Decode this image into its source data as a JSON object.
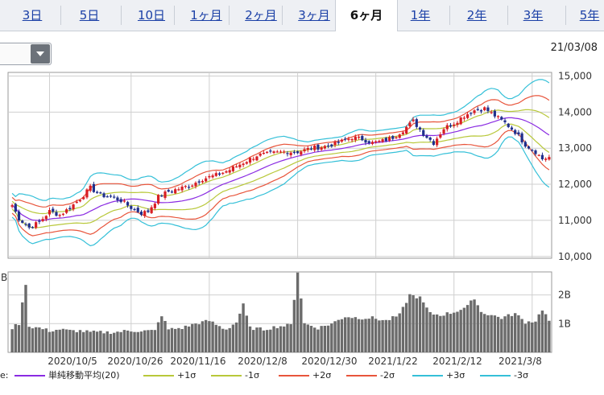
{
  "tabs": [
    {
      "label": "3日",
      "active": false
    },
    {
      "label": "5日",
      "active": false
    },
    {
      "label": "10日",
      "active": false
    },
    {
      "label": "1ヶ月",
      "active": false
    },
    {
      "label": "2ヶ月",
      "active": false
    },
    {
      "label": "3ヶ月",
      "active": false
    },
    {
      "label": "6ヶ月",
      "active": true
    },
    {
      "label": "1年",
      "active": false
    },
    {
      "label": "2年",
      "active": false
    },
    {
      "label": "3年",
      "active": false
    },
    {
      "label": "5年",
      "active": false
    }
  ],
  "date_label": "21/03/08",
  "legend_prefix": "e:",
  "legend": [
    {
      "label": "単純移動平均(20)",
      "color": "#8a2be2"
    },
    {
      "label": "+1σ",
      "color": "#b8c83a"
    },
    {
      "label": "-1σ",
      "color": "#b8c83a"
    },
    {
      "label": "+2σ",
      "color": "#e8553c"
    },
    {
      "label": "-2σ",
      "color": "#e8553c"
    },
    {
      "label": "+3σ",
      "color": "#35c0d8"
    },
    {
      "label": "-3σ",
      "color": "#35c0d8"
    }
  ],
  "colors": {
    "up": "#d81e24",
    "down": "#1f2f8c",
    "volume": "#6b6b6b"
  },
  "chart_data": {
    "type": "candlestick",
    "price_axis": {
      "ticks": [
        10000,
        11000,
        12000,
        13000,
        14000,
        15000
      ],
      "tick_labels": [
        "10,000",
        "11,000",
        "12,000",
        "13,000",
        "14,000",
        "15,000"
      ],
      "range": [
        9950,
        15100
      ]
    },
    "volume_axis": {
      "ticks": [
        1,
        2
      ],
      "tick_labels": [
        "1B",
        "2B"
      ],
      "unit_label": "B",
      "range": [
        0,
        2.8
      ]
    },
    "x_labels": [
      "2020/10/5",
      "2020/10/26",
      "2020/11/16",
      "2020/12/8",
      "2020/12/30",
      "2021/1/22",
      "2021/2/12",
      "2021/3/8"
    ],
    "grid": true,
    "close_anchors": [
      [
        0,
        11420
      ],
      [
        2,
        11050
      ],
      [
        5,
        10800
      ],
      [
        8,
        10950
      ],
      [
        11,
        11250
      ],
      [
        14,
        11150
      ],
      [
        17,
        11350
      ],
      [
        20,
        11600
      ],
      [
        23,
        11900
      ],
      [
        26,
        11700
      ],
      [
        29,
        11650
      ],
      [
        32,
        11550
      ],
      [
        35,
        11350
      ],
      [
        38,
        11200
      ],
      [
        40,
        11250
      ],
      [
        43,
        11650
      ],
      [
        46,
        11800
      ],
      [
        50,
        11900
      ],
      [
        53,
        12000
      ],
      [
        56,
        12150
      ],
      [
        60,
        12250
      ],
      [
        64,
        12400
      ],
      [
        68,
        12600
      ],
      [
        72,
        12800
      ],
      [
        76,
        12850
      ],
      [
        80,
        12900
      ],
      [
        84,
        12900
      ],
      [
        88,
        13000
      ],
      [
        92,
        13050
      ],
      [
        96,
        13150
      ],
      [
        100,
        13300
      ],
      [
        103,
        13250
      ],
      [
        106,
        13150
      ],
      [
        109,
        13200
      ],
      [
        112,
        13300
      ],
      [
        115,
        13500
      ],
      [
        118,
        13750
      ],
      [
        121,
        13400
      ],
      [
        124,
        13150
      ],
      [
        127,
        13550
      ],
      [
        130,
        13700
      ],
      [
        133,
        13900
      ],
      [
        136,
        14050
      ],
      [
        139,
        14100
      ],
      [
        142,
        13900
      ],
      [
        145,
        13700
      ],
      [
        148,
        13450
      ],
      [
        151,
        13100
      ],
      [
        154,
        12900
      ],
      [
        156,
        12700
      ],
      [
        158,
        12750
      ]
    ],
    "volume_anchors": [
      [
        0,
        0.85
      ],
      [
        2,
        1.0
      ],
      [
        4,
        2.4
      ],
      [
        5,
        0.9
      ],
      [
        8,
        0.85
      ],
      [
        11,
        0.75
      ],
      [
        14,
        0.8
      ],
      [
        17,
        0.75
      ],
      [
        20,
        0.75
      ],
      [
        23,
        0.7
      ],
      [
        26,
        0.7
      ],
      [
        30,
        0.7
      ],
      [
        34,
        0.75
      ],
      [
        38,
        0.75
      ],
      [
        42,
        0.75
      ],
      [
        44,
        1.3
      ],
      [
        46,
        0.8
      ],
      [
        50,
        0.85
      ],
      [
        54,
        1.0
      ],
      [
        58,
        1.1
      ],
      [
        61,
        0.9
      ],
      [
        63,
        0.8
      ],
      [
        66,
        1.05
      ],
      [
        68,
        1.65
      ],
      [
        70,
        0.85
      ],
      [
        74,
        0.8
      ],
      [
        78,
        0.9
      ],
      [
        82,
        0.95
      ],
      [
        84,
        2.8
      ],
      [
        86,
        1.0
      ],
      [
        90,
        0.85
      ],
      [
        94,
        1.0
      ],
      [
        98,
        1.25
      ],
      [
        102,
        1.2
      ],
      [
        106,
        1.2
      ],
      [
        110,
        1.1
      ],
      [
        114,
        1.3
      ],
      [
        117,
        2.0
      ],
      [
        120,
        1.9
      ],
      [
        123,
        1.35
      ],
      [
        126,
        1.3
      ],
      [
        130,
        1.4
      ],
      [
        134,
        1.6
      ],
      [
        136,
        1.9
      ],
      [
        138,
        1.4
      ],
      [
        141,
        1.3
      ],
      [
        144,
        1.2
      ],
      [
        148,
        1.35
      ],
      [
        151,
        1.05
      ],
      [
        154,
        1.1
      ],
      [
        156,
        1.5
      ],
      [
        158,
        1.1
      ]
    ],
    "bollinger": {
      "period": 20,
      "sigma": [
        1,
        2,
        3
      ]
    },
    "bar_count": 159
  }
}
